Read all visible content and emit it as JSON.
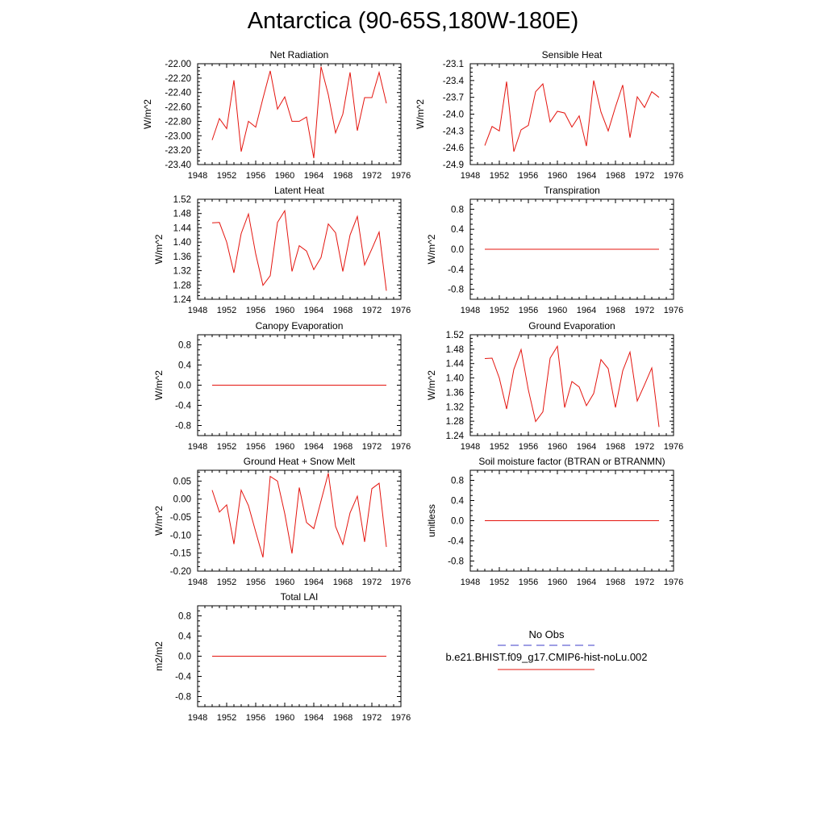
{
  "title": "Antarctica (90-65S,180W-180E)",
  "colors": {
    "model": "#e4140e",
    "obs": "#3c3cc8"
  },
  "legend": {
    "obs_label": "No Obs",
    "model_label": "b.e21.BHIST.f09_g17.CMIP6-hist-noLu.002"
  },
  "chart_data": [
    {
      "type": "line",
      "title": "Net Radiation",
      "ylabel": "W/m^2",
      "xlim": [
        1948,
        1976
      ],
      "ylim": [
        -23.4,
        -22.0
      ],
      "xticks": [
        "1948",
        "1952",
        "1956",
        "1960",
        "1964",
        "1968",
        "1972",
        "1976"
      ],
      "yticks": [
        "-22.00",
        "-22.20",
        "-22.40",
        "-22.60",
        "-22.80",
        "-23.00",
        "-23.20",
        "-23.40"
      ],
      "ytick_values": [
        -22.0,
        -22.2,
        -22.4,
        -22.6,
        -22.8,
        -23.0,
        -23.2,
        -23.4
      ],
      "x": [
        1950,
        1951,
        1952,
        1953,
        1954,
        1955,
        1956,
        1957,
        1958,
        1959,
        1960,
        1961,
        1962,
        1963,
        1964,
        1965,
        1966,
        1967,
        1968,
        1969,
        1970,
        1971,
        1972,
        1973,
        1974
      ],
      "series": [
        {
          "values": [
            -23.06,
            -22.76,
            -22.9,
            -22.23,
            -23.22,
            -22.8,
            -22.88,
            -22.48,
            -22.1,
            -22.63,
            -22.46,
            -22.8,
            -22.8,
            -22.74,
            -23.31,
            -22.04,
            -22.43,
            -22.96,
            -22.7,
            -22.12,
            -22.93,
            -22.47,
            -22.47,
            -22.12,
            -22.55
          ]
        }
      ]
    },
    {
      "type": "line",
      "title": "Sensible Heat",
      "ylabel": "W/m^2",
      "xlim": [
        1948,
        1976
      ],
      "ylim": [
        -24.9,
        -23.1
      ],
      "xticks": [
        "1948",
        "1952",
        "1956",
        "1960",
        "1964",
        "1968",
        "1972",
        "1976"
      ],
      "yticks": [
        "-23.1",
        "-23.4",
        "-23.7",
        "-24.0",
        "-24.3",
        "-24.6",
        "-24.9"
      ],
      "ytick_values": [
        -23.1,
        -23.4,
        -23.7,
        -24.0,
        -24.3,
        -24.6,
        -24.9
      ],
      "x": [
        1950,
        1951,
        1952,
        1953,
        1954,
        1955,
        1956,
        1957,
        1958,
        1959,
        1960,
        1961,
        1962,
        1963,
        1964,
        1965,
        1966,
        1967,
        1968,
        1969,
        1970,
        1971,
        1972,
        1973,
        1974
      ],
      "series": [
        {
          "values": [
            -24.56,
            -24.22,
            -24.3,
            -23.42,
            -24.67,
            -24.28,
            -24.2,
            -23.6,
            -23.46,
            -24.14,
            -23.95,
            -23.98,
            -24.23,
            -24.03,
            -24.57,
            -23.4,
            -23.96,
            -24.3,
            -23.87,
            -23.48,
            -24.42,
            -23.69,
            -23.88,
            -23.6,
            -23.7
          ]
        }
      ]
    },
    {
      "type": "line",
      "title": "Latent Heat",
      "ylabel": "W/m^2",
      "xlim": [
        1948,
        1976
      ],
      "ylim": [
        1.24,
        1.52
      ],
      "xticks": [
        "1948",
        "1952",
        "1956",
        "1960",
        "1964",
        "1968",
        "1972",
        "1976"
      ],
      "yticks": [
        "1.52",
        "1.48",
        "1.44",
        "1.40",
        "1.36",
        "1.32",
        "1.28",
        "1.24"
      ],
      "ytick_values": [
        1.52,
        1.48,
        1.44,
        1.4,
        1.36,
        1.32,
        1.28,
        1.24
      ],
      "x": [
        1950,
        1951,
        1952,
        1953,
        1954,
        1955,
        1956,
        1957,
        1958,
        1959,
        1960,
        1961,
        1962,
        1963,
        1964,
        1965,
        1966,
        1967,
        1968,
        1969,
        1970,
        1971,
        1972,
        1973,
        1974
      ],
      "series": [
        {
          "values": [
            1.454,
            1.455,
            1.4,
            1.314,
            1.424,
            1.479,
            1.367,
            1.279,
            1.306,
            1.455,
            1.488,
            1.318,
            1.39,
            1.375,
            1.323,
            1.357,
            1.451,
            1.426,
            1.318,
            1.42,
            1.472,
            1.336,
            1.381,
            1.428,
            1.264
          ]
        }
      ]
    },
    {
      "type": "line",
      "title": "Transpiration",
      "ylabel": "W/m^2",
      "xlim": [
        1948,
        1976
      ],
      "ylim": [
        -1.0,
        1.0
      ],
      "xticks": [
        "1948",
        "1952",
        "1956",
        "1960",
        "1964",
        "1968",
        "1972",
        "1976"
      ],
      "yticks": [
        "0.8",
        "0.4",
        "0.0",
        "-0.4",
        "-0.8"
      ],
      "ytick_values": [
        0.8,
        0.4,
        0.0,
        -0.4,
        -0.8
      ],
      "x": [
        1950,
        1951,
        1952,
        1953,
        1954,
        1955,
        1956,
        1957,
        1958,
        1959,
        1960,
        1961,
        1962,
        1963,
        1964,
        1965,
        1966,
        1967,
        1968,
        1969,
        1970,
        1971,
        1972,
        1973,
        1974
      ],
      "series": [
        {
          "values": [
            0,
            0,
            0,
            0,
            0,
            0,
            0,
            0,
            0,
            0,
            0,
            0,
            0,
            0,
            0,
            0,
            0,
            0,
            0,
            0,
            0,
            0,
            0,
            0,
            0
          ]
        }
      ]
    },
    {
      "type": "line",
      "title": "Canopy Evaporation",
      "ylabel": "W/m^2",
      "xlim": [
        1948,
        1976
      ],
      "ylim": [
        -1.0,
        1.0
      ],
      "xticks": [
        "1948",
        "1952",
        "1956",
        "1960",
        "1964",
        "1968",
        "1972",
        "1976"
      ],
      "yticks": [
        "0.8",
        "0.4",
        "0.0",
        "-0.4",
        "-0.8"
      ],
      "ytick_values": [
        0.8,
        0.4,
        0.0,
        -0.4,
        -0.8
      ],
      "x": [
        1950,
        1951,
        1952,
        1953,
        1954,
        1955,
        1956,
        1957,
        1958,
        1959,
        1960,
        1961,
        1962,
        1963,
        1964,
        1965,
        1966,
        1967,
        1968,
        1969,
        1970,
        1971,
        1972,
        1973,
        1974
      ],
      "series": [
        {
          "values": [
            0,
            0,
            0,
            0,
            0,
            0,
            0,
            0,
            0,
            0,
            0,
            0,
            0,
            0,
            0,
            0,
            0,
            0,
            0,
            0,
            0,
            0,
            0,
            0,
            0
          ]
        }
      ]
    },
    {
      "type": "line",
      "title": "Ground Evaporation",
      "ylabel": "W/m^2",
      "xlim": [
        1948,
        1976
      ],
      "ylim": [
        1.24,
        1.52
      ],
      "xticks": [
        "1948",
        "1952",
        "1956",
        "1960",
        "1964",
        "1968",
        "1972",
        "1976"
      ],
      "yticks": [
        "1.52",
        "1.48",
        "1.44",
        "1.40",
        "1.36",
        "1.32",
        "1.28",
        "1.24"
      ],
      "ytick_values": [
        1.52,
        1.48,
        1.44,
        1.4,
        1.36,
        1.32,
        1.28,
        1.24
      ],
      "x": [
        1950,
        1951,
        1952,
        1953,
        1954,
        1955,
        1956,
        1957,
        1958,
        1959,
        1960,
        1961,
        1962,
        1963,
        1964,
        1965,
        1966,
        1967,
        1968,
        1969,
        1970,
        1971,
        1972,
        1973,
        1974
      ],
      "series": [
        {
          "values": [
            1.454,
            1.455,
            1.4,
            1.314,
            1.424,
            1.479,
            1.367,
            1.279,
            1.306,
            1.455,
            1.488,
            1.318,
            1.39,
            1.375,
            1.323,
            1.357,
            1.451,
            1.426,
            1.318,
            1.42,
            1.472,
            1.336,
            1.381,
            1.428,
            1.264
          ]
        }
      ]
    },
    {
      "type": "line",
      "title": "Ground Heat + Snow Melt",
      "ylabel": "W/m^2",
      "xlim": [
        1948,
        1976
      ],
      "ylim": [
        -0.2,
        0.08
      ],
      "xticks": [
        "1948",
        "1952",
        "1956",
        "1960",
        "1964",
        "1968",
        "1972",
        "1976"
      ],
      "yticks": [
        "0.05",
        "0.00",
        "-0.05",
        "-0.10",
        "-0.15",
        "-0.20"
      ],
      "ytick_values": [
        0.05,
        0.0,
        -0.05,
        -0.1,
        -0.15,
        -0.2
      ],
      "x": [
        1950,
        1951,
        1952,
        1953,
        1954,
        1955,
        1956,
        1957,
        1958,
        1959,
        1960,
        1961,
        1962,
        1963,
        1964,
        1965,
        1966,
        1967,
        1968,
        1969,
        1970,
        1971,
        1972,
        1973,
        1974
      ],
      "series": [
        {
          "values": [
            0.025,
            -0.036,
            -0.016,
            -0.125,
            0.025,
            -0.018,
            -0.091,
            -0.162,
            0.063,
            0.05,
            -0.04,
            -0.151,
            0.032,
            -0.065,
            -0.082,
            -0.005,
            0.072,
            -0.076,
            -0.126,
            -0.038,
            0.008,
            -0.119,
            0.029,
            0.044,
            -0.133
          ]
        }
      ]
    },
    {
      "type": "line",
      "title": "Soil moisture factor (BTRAN or BTRANMN)",
      "ylabel": "unitless",
      "xlim": [
        1948,
        1976
      ],
      "ylim": [
        -1.0,
        1.0
      ],
      "xticks": [
        "1948",
        "1952",
        "1956",
        "1960",
        "1964",
        "1968",
        "1972",
        "1976"
      ],
      "yticks": [
        "0.8",
        "0.4",
        "0.0",
        "-0.4",
        "-0.8"
      ],
      "ytick_values": [
        0.8,
        0.4,
        0.0,
        -0.4,
        -0.8
      ],
      "x": [
        1950,
        1951,
        1952,
        1953,
        1954,
        1955,
        1956,
        1957,
        1958,
        1959,
        1960,
        1961,
        1962,
        1963,
        1964,
        1965,
        1966,
        1967,
        1968,
        1969,
        1970,
        1971,
        1972,
        1973,
        1974
      ],
      "series": [
        {
          "values": [
            0,
            0,
            0,
            0,
            0,
            0,
            0,
            0,
            0,
            0,
            0,
            0,
            0,
            0,
            0,
            0,
            0,
            0,
            0,
            0,
            0,
            0,
            0,
            0,
            0
          ]
        }
      ]
    },
    {
      "type": "line",
      "title": "Total LAI",
      "ylabel": "m2/m2",
      "xlim": [
        1948,
        1976
      ],
      "ylim": [
        -1.0,
        1.0
      ],
      "xticks": [
        "1948",
        "1952",
        "1956",
        "1960",
        "1964",
        "1968",
        "1972",
        "1976"
      ],
      "yticks": [
        "0.8",
        "0.4",
        "0.0",
        "-0.4",
        "-0.8"
      ],
      "ytick_values": [
        0.8,
        0.4,
        0.0,
        -0.4,
        -0.8
      ],
      "x": [
        1950,
        1951,
        1952,
        1953,
        1954,
        1955,
        1956,
        1957,
        1958,
        1959,
        1960,
        1961,
        1962,
        1963,
        1964,
        1965,
        1966,
        1967,
        1968,
        1969,
        1970,
        1971,
        1972,
        1973,
        1974
      ],
      "series": [
        {
          "values": [
            0,
            0,
            0,
            0,
            0,
            0,
            0,
            0,
            0,
            0,
            0,
            0,
            0,
            0,
            0,
            0,
            0,
            0,
            0,
            0,
            0,
            0,
            0,
            0,
            0
          ]
        }
      ]
    }
  ]
}
